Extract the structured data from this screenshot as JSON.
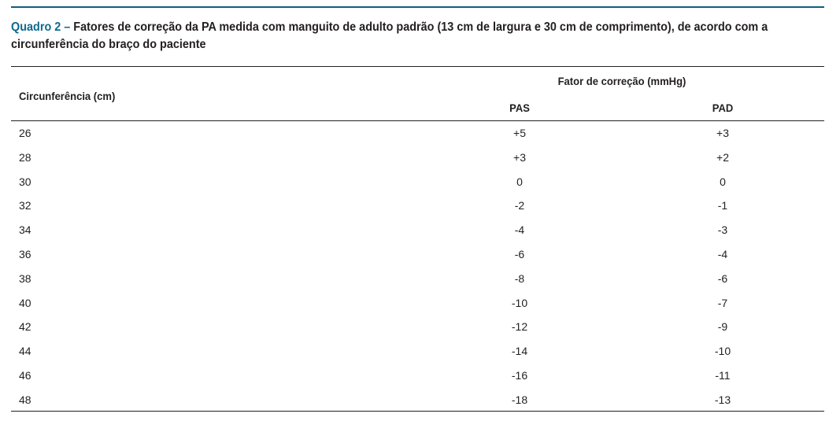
{
  "caption": {
    "label": "Quadro 2 –",
    "text": "Fatores de correção da PA medida com manguito de adulto padrão (13 cm de largura e 30 cm de comprimento), de acordo com a circunferência do braço do paciente"
  },
  "colors": {
    "accent": "#0f6a8f",
    "text": "#231f20"
  },
  "table": {
    "headers": {
      "circumference": "Circunferência (cm)",
      "group": "Fator de correção (mmHg)",
      "pas": "PAS",
      "pad": "PAD"
    },
    "rows": [
      {
        "circ": "26",
        "pas": "+5",
        "pad": "+3"
      },
      {
        "circ": "28",
        "pas": "+3",
        "pad": "+2"
      },
      {
        "circ": "30",
        "pas": "0",
        "pad": "0"
      },
      {
        "circ": "32",
        "pas": "-2",
        "pad": "-1"
      },
      {
        "circ": "34",
        "pas": "-4",
        "pad": "-3"
      },
      {
        "circ": "36",
        "pas": "-6",
        "pad": "-4"
      },
      {
        "circ": "38",
        "pas": "-8",
        "pad": "-6"
      },
      {
        "circ": "40",
        "pas": "-10",
        "pad": "-7"
      },
      {
        "circ": "42",
        "pas": "-12",
        "pad": "-9"
      },
      {
        "circ": "44",
        "pas": "-14",
        "pad": "-10"
      },
      {
        "circ": "46",
        "pas": "-16",
        "pad": "-11"
      },
      {
        "circ": "48",
        "pas": "-18",
        "pad": "-13"
      }
    ]
  }
}
